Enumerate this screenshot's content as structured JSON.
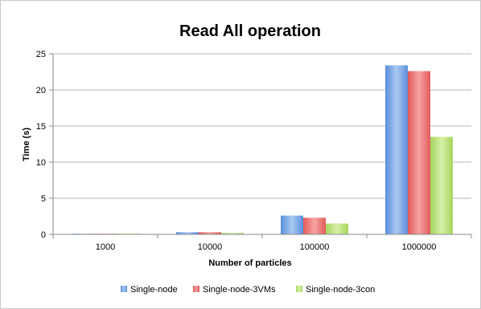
{
  "chart_data": {
    "type": "bar",
    "title": "Read All operation",
    "xlabel": "Number of particles",
    "ylabel": "Time (s)",
    "categories": [
      "1000",
      "10000",
      "100000",
      "1000000"
    ],
    "ylim": [
      0,
      25
    ],
    "yticks": [
      0,
      5,
      10,
      15,
      20,
      25
    ],
    "grid": true,
    "legend_position": "bottom",
    "series": [
      {
        "name": "Single-node",
        "color": "#6fa0e6",
        "values": [
          0.03,
          0.3,
          2.6,
          23.4
        ]
      },
      {
        "name": "Single-node-3VMs",
        "color": "#ee6a6a",
        "values": [
          0.03,
          0.3,
          2.3,
          22.6
        ]
      },
      {
        "name": "Single-node-3con",
        "color": "#b8e07a",
        "values": [
          0.02,
          0.2,
          1.5,
          13.5
        ]
      }
    ]
  }
}
